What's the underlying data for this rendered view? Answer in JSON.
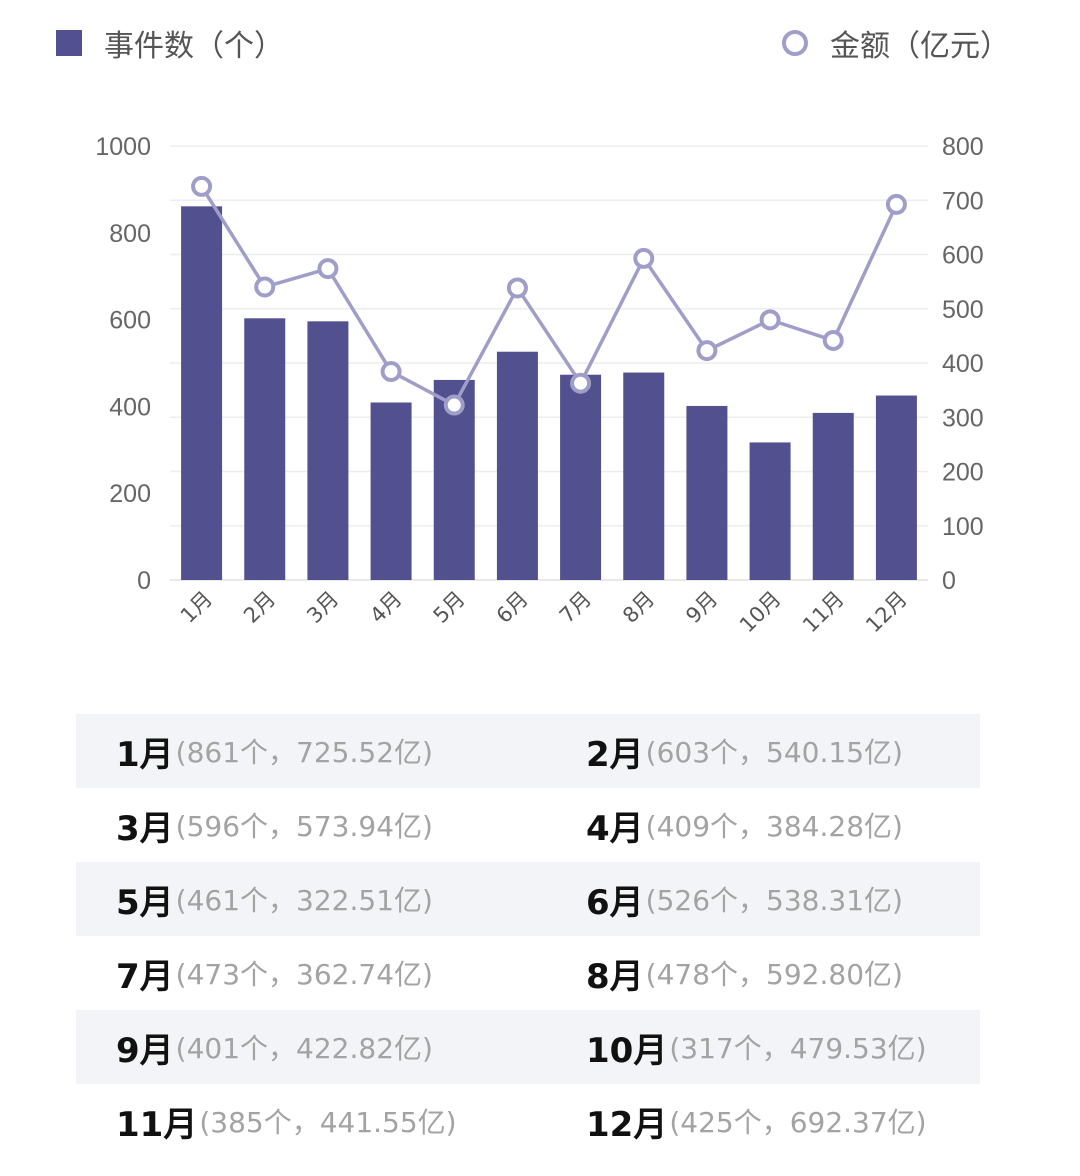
{
  "legend": {
    "bar_label": "事件数（个）",
    "line_label": "金额（亿元）"
  },
  "colors": {
    "bar": "#535090",
    "line": "#9f9ec8",
    "grid": "#eeeeee",
    "stripe": "#f3f4f7"
  },
  "chart_data": {
    "type": "bar",
    "categories": [
      "1月",
      "2月",
      "3月",
      "4月",
      "5月",
      "6月",
      "7月",
      "8月",
      "9月",
      "10月",
      "11月",
      "12月"
    ],
    "series": [
      {
        "name": "事件数（个）",
        "type": "bar",
        "axis": "left",
        "values": [
          861,
          603,
          596,
          409,
          461,
          526,
          473,
          478,
          401,
          317,
          385,
          425
        ]
      },
      {
        "name": "金额（亿元）",
        "type": "line",
        "axis": "right",
        "values": [
          725.52,
          540.15,
          573.94,
          384.28,
          322.51,
          538.31,
          362.74,
          592.8,
          422.82,
          479.53,
          441.55,
          692.37
        ]
      }
    ],
    "y_left": {
      "ticks": [
        "0",
        "200",
        "400",
        "600",
        "800",
        "1000"
      ],
      "lim": [
        0,
        1000
      ]
    },
    "y_right": {
      "ticks": [
        "0",
        "100",
        "200",
        "300",
        "400",
        "500",
        "600",
        "700",
        "800"
      ],
      "lim": [
        0,
        800
      ]
    },
    "legend_position": "top",
    "grid": true
  },
  "table": [
    {
      "month": "1月",
      "detail": "(861个，725.52亿)"
    },
    {
      "month": "2月",
      "detail": "(603个，540.15亿)"
    },
    {
      "month": "3月",
      "detail": "(596个，573.94亿)"
    },
    {
      "month": "4月",
      "detail": "(409个，384.28亿)"
    },
    {
      "month": "5月",
      "detail": "(461个，322.51亿)"
    },
    {
      "month": "6月",
      "detail": "(526个，538.31亿)"
    },
    {
      "month": "7月",
      "detail": "(473个，362.74亿)"
    },
    {
      "month": "8月",
      "detail": "(478个，592.80亿)"
    },
    {
      "month": "9月",
      "detail": "(401个，422.82亿)"
    },
    {
      "month": "10月",
      "detail": "(317个，479.53亿)"
    },
    {
      "month": "11月",
      "detail": "(385个，441.55亿)"
    },
    {
      "month": "12月",
      "detail": "(425个，692.37亿)"
    }
  ]
}
